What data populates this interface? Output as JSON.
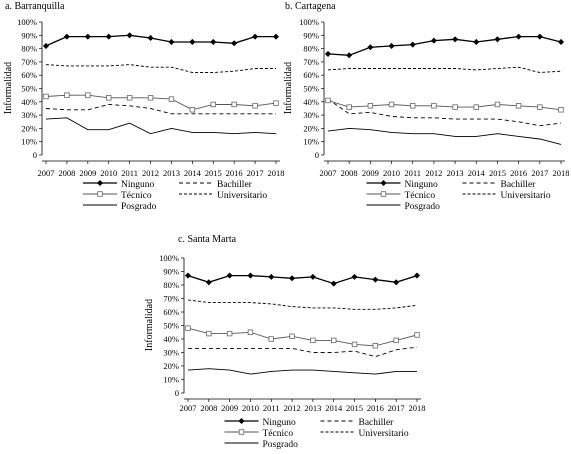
{
  "y_axis_label": "Informalidad",
  "legend_labels": {
    "ninguno": "Ninguno",
    "bachiller": "Bachiller",
    "tecnico": "Técnico",
    "universitario": "Universitario",
    "posgrado": "Posgrado"
  },
  "chart_data": [
    {
      "type": "line",
      "title": "a. Barranquilla",
      "x": [
        "2007",
        "2008",
        "2009",
        "2010",
        "2011",
        "2012",
        "2013",
        "2014",
        "2015",
        "2016",
        "2017",
        "2018"
      ],
      "ylim": [
        0,
        100
      ],
      "yticks": [
        "0",
        "10%",
        "20%",
        "30%",
        "40%",
        "50%",
        "60%",
        "70%",
        "80%",
        "90%",
        "100%"
      ],
      "ylabel": "Informalidad",
      "series": [
        {
          "name": "Ninguno",
          "values": [
            82,
            89,
            89,
            89,
            90,
            88,
            85,
            85,
            85,
            84,
            89,
            89
          ]
        },
        {
          "name": "Bachiller",
          "values": [
            35,
            34,
            34,
            38,
            37,
            35,
            31,
            31,
            31,
            31,
            31,
            31
          ]
        },
        {
          "name": "Técnico",
          "values": [
            44,
            45,
            45,
            43,
            43,
            43,
            42,
            34,
            38,
            38,
            37,
            39
          ]
        },
        {
          "name": "Universitario",
          "values": [
            68,
            67,
            67,
            67,
            68,
            66,
            66,
            62,
            62,
            63,
            65,
            65
          ]
        },
        {
          "name": "Posgrado",
          "values": [
            27,
            28,
            19,
            19,
            24,
            16,
            20,
            17,
            17,
            16,
            17,
            16
          ]
        }
      ]
    },
    {
      "type": "line",
      "title": "b. Cartagena",
      "x": [
        "2007",
        "2008",
        "2009",
        "2010",
        "2011",
        "2012",
        "2013",
        "2014",
        "2015",
        "2016",
        "2017",
        "2018"
      ],
      "ylim": [
        0,
        100
      ],
      "yticks": [
        "0",
        "10%",
        "20%",
        "30%",
        "40%",
        "50%",
        "60%",
        "70%",
        "80%",
        "90%",
        "100%"
      ],
      "ylabel": "Informalidad",
      "series": [
        {
          "name": "Ninguno",
          "values": [
            76,
            75,
            81,
            82,
            83,
            86,
            87,
            85,
            87,
            89,
            89,
            85
          ]
        },
        {
          "name": "Bachiller",
          "values": [
            42,
            31,
            32,
            29,
            28,
            28,
            27,
            27,
            27,
            25,
            22,
            24
          ]
        },
        {
          "name": "Técnico",
          "values": [
            41,
            36,
            37,
            38,
            37,
            37,
            36,
            36,
            38,
            37,
            36,
            34
          ]
        },
        {
          "name": "Universitario",
          "values": [
            64,
            65,
            65,
            65,
            65,
            65,
            65,
            64,
            65,
            66,
            62,
            63
          ]
        },
        {
          "name": "Posgrado",
          "values": [
            18,
            20,
            19,
            17,
            16,
            16,
            14,
            14,
            16,
            14,
            12,
            8
          ]
        }
      ]
    },
    {
      "type": "line",
      "title": "c. Santa Marta",
      "x": [
        "2007",
        "2008",
        "2009",
        "2010",
        "2011",
        "2012",
        "2013",
        "2014",
        "2015",
        "2016",
        "2017",
        "2018"
      ],
      "ylim": [
        0,
        100
      ],
      "yticks": [
        "0",
        "10%",
        "20%",
        "30%",
        "40%",
        "50%",
        "60%",
        "70%",
        "80%",
        "90%",
        "100%"
      ],
      "ylabel": "Informalidad",
      "series": [
        {
          "name": "Ninguno",
          "values": [
            87,
            82,
            87,
            87,
            86,
            85,
            86,
            81,
            86,
            84,
            82,
            87
          ]
        },
        {
          "name": "Bachiller",
          "values": [
            33,
            33,
            33,
            33,
            33,
            33,
            30,
            30,
            31,
            27,
            32,
            34
          ]
        },
        {
          "name": "Técnico",
          "values": [
            48,
            44,
            44,
            45,
            40,
            42,
            39,
            39,
            36,
            35,
            39,
            43
          ]
        },
        {
          "name": "Universitario",
          "values": [
            69,
            67,
            67,
            67,
            66,
            64,
            63,
            63,
            62,
            62,
            63,
            65
          ]
        },
        {
          "name": "Posgrado",
          "values": [
            17,
            18,
            17,
            14,
            16,
            17,
            17,
            16,
            15,
            14,
            16,
            16
          ]
        }
      ]
    }
  ]
}
